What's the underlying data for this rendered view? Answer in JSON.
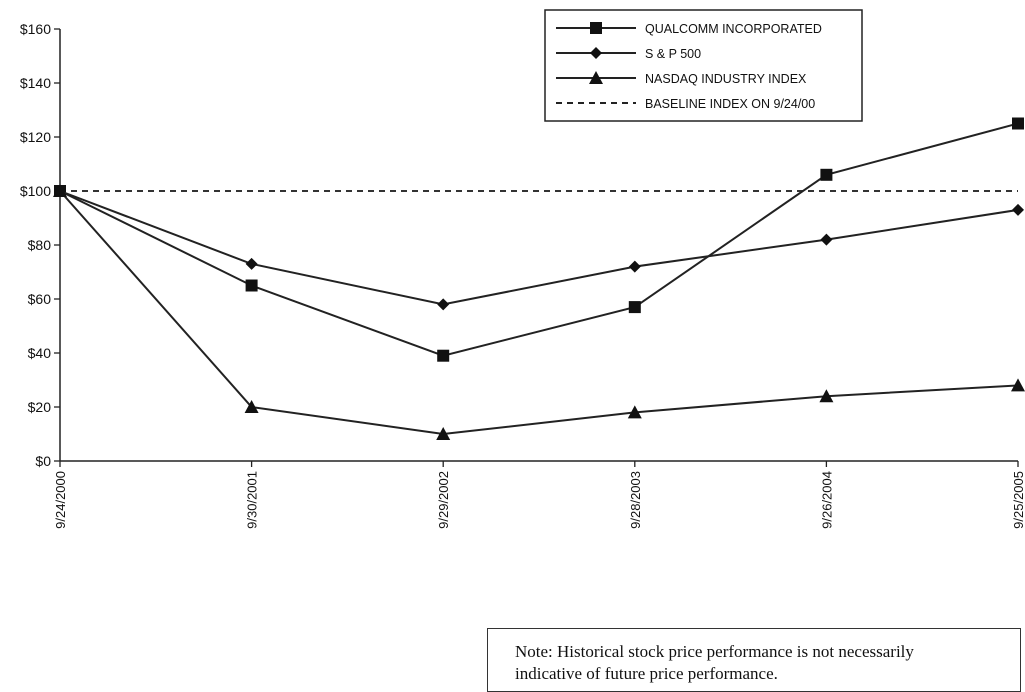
{
  "chart_data": {
    "type": "line",
    "categories": [
      "9/24/2000",
      "9/30/2001",
      "9/29/2002",
      "9/28/2003",
      "9/26/2004",
      "9/25/2005"
    ],
    "ylim": [
      0,
      160
    ],
    "yticks": [
      0,
      20,
      40,
      60,
      80,
      100,
      120,
      140,
      160
    ],
    "ytick_labels": [
      "$0",
      "$20",
      "$40",
      "$60",
      "$80",
      "$100",
      "$120",
      "$140",
      "$160"
    ],
    "title": "",
    "xlabel": "",
    "ylabel": "",
    "grid": false,
    "legend_position": "top-right",
    "series": [
      {
        "name": "QUALCOMM INCORPORATED",
        "marker": "square",
        "style": "solid",
        "values": [
          100,
          65,
          39,
          57,
          106,
          125
        ]
      },
      {
        "name": "S & P 500",
        "marker": "diamond",
        "style": "solid",
        "values": [
          100,
          73,
          58,
          72,
          82,
          93
        ]
      },
      {
        "name": "NASDAQ INDUSTRY INDEX",
        "marker": "triangle",
        "style": "solid",
        "values": [
          100,
          20,
          10,
          18,
          24,
          28
        ]
      }
    ],
    "baseline": {
      "name": "BASELINE INDEX ON 9/24/00",
      "style": "dashed",
      "value": 100
    }
  },
  "note": {
    "line1": "Note:  Historical stock price performance is not necessarily",
    "line2": "indicative of future price performance."
  }
}
